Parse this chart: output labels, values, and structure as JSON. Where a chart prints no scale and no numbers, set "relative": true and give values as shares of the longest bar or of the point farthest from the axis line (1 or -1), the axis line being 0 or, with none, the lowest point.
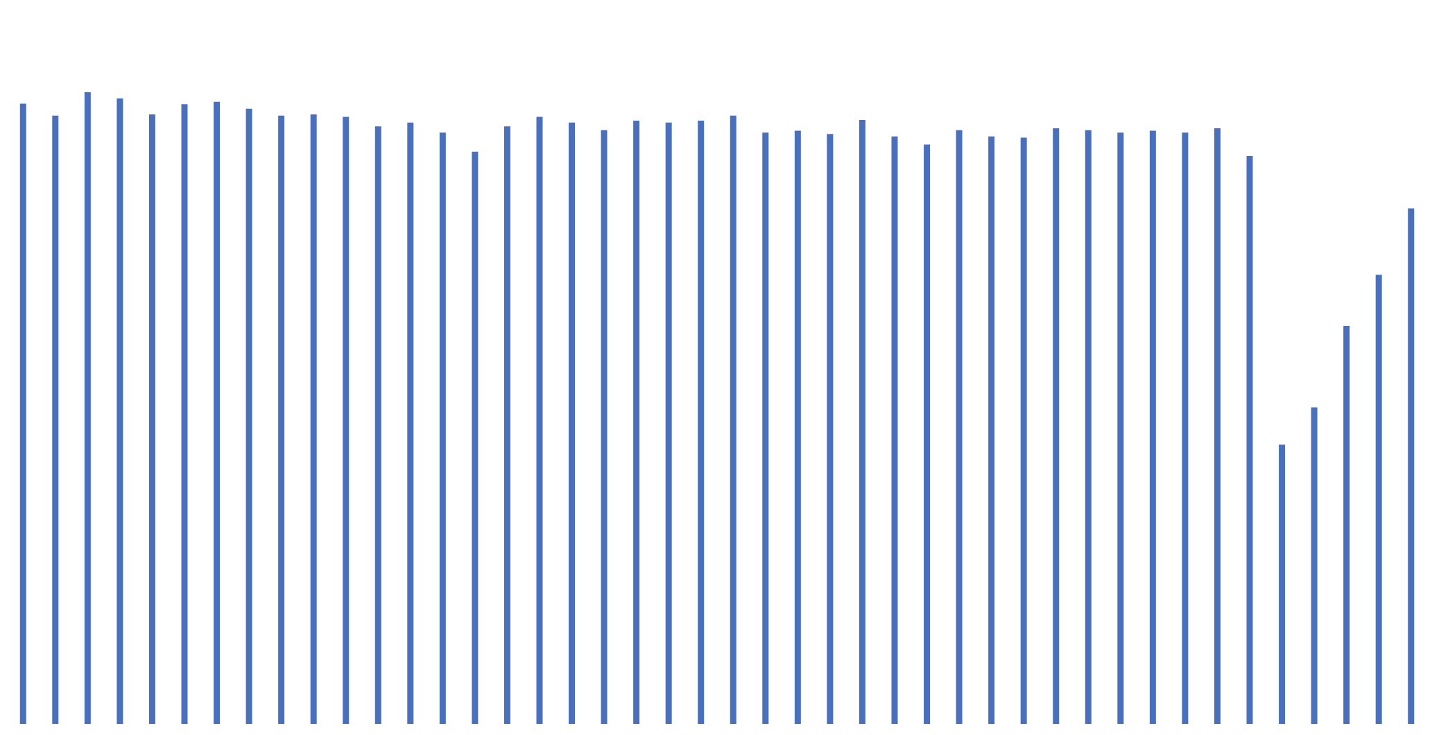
{
  "chart_data": {
    "type": "bar",
    "relative": true,
    "color": "#4a70bd",
    "categories": [
      null,
      null,
      null,
      null,
      null,
      null,
      null,
      null,
      null,
      null,
      null,
      null,
      null,
      null,
      null,
      null,
      null,
      null,
      null,
      null,
      null,
      null,
      null,
      null,
      null,
      null,
      null,
      null,
      null,
      null,
      null,
      null,
      null,
      null,
      null,
      null,
      null,
      null,
      null,
      null,
      null,
      null,
      null,
      null
    ],
    "values": [
      0.982,
      0.963,
      1,
      0.99,
      0.965,
      0.981,
      0.985,
      0.974,
      0.963,
      0.965,
      0.961,
      0.946,
      0.952,
      0.936,
      0.906,
      0.946,
      0.961,
      0.952,
      0.94,
      0.955,
      0.952,
      0.955,
      0.963,
      0.936,
      0.939,
      0.934,
      0.956,
      0.93,
      0.917,
      0.94,
      0.93,
      0.928,
      0.943,
      0.94,
      0.936,
      0.939,
      0.936,
      0.943,
      0.899,
      0.442,
      0.501,
      0.63,
      0.711,
      0.816
    ]
  }
}
